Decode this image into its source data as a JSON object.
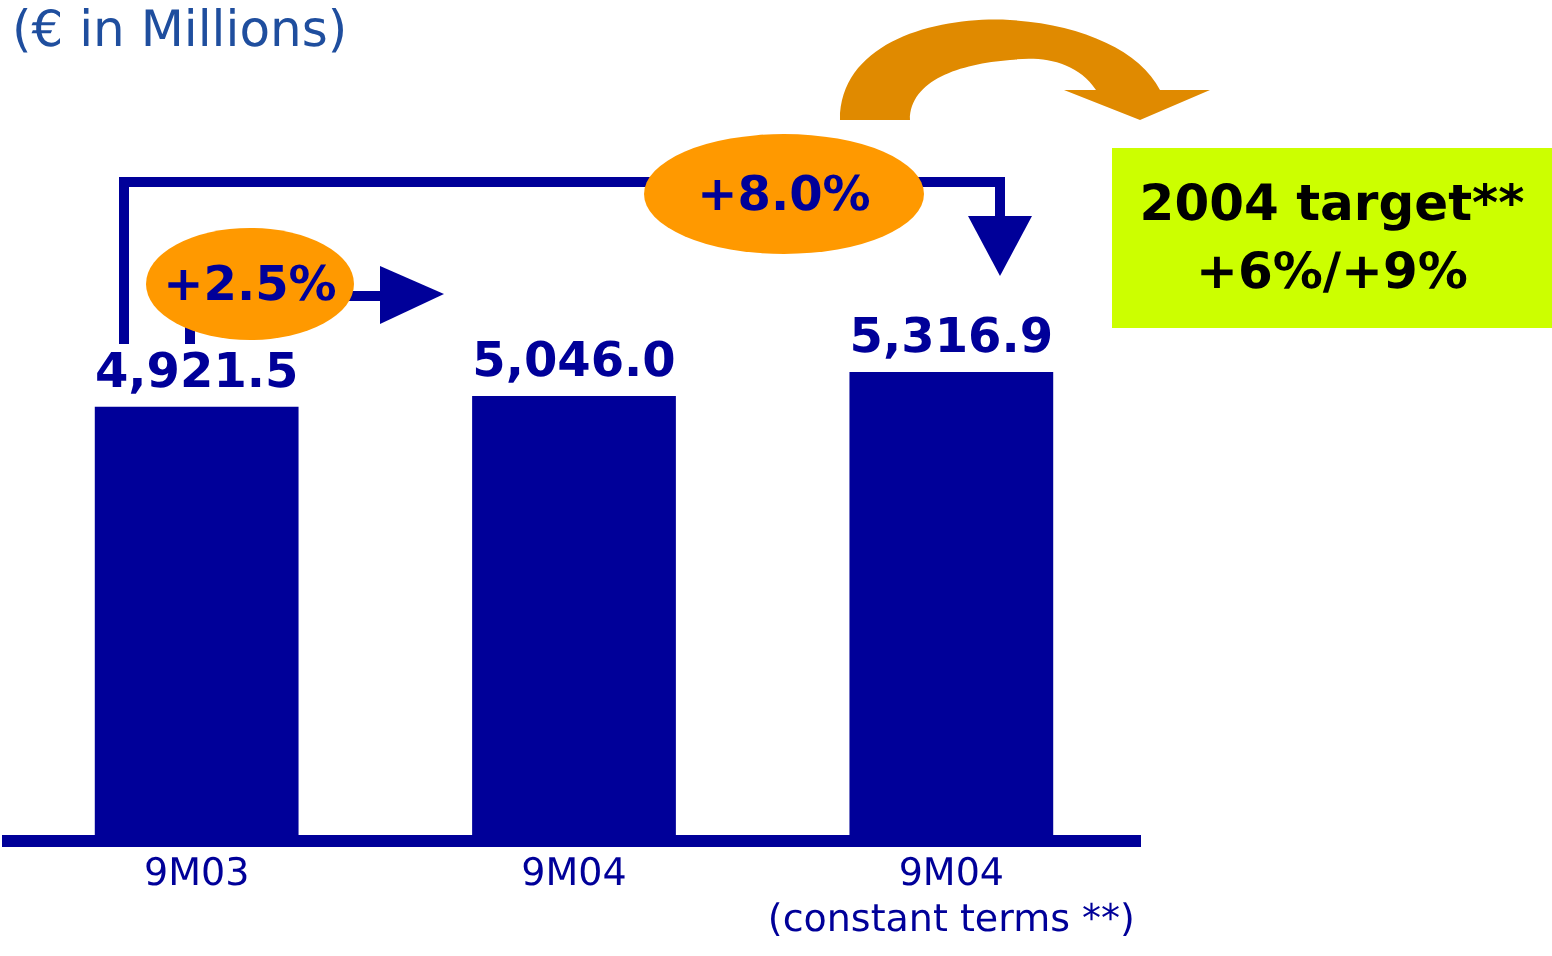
{
  "chart_data": {
    "type": "bar",
    "title": "(€ in Millions)",
    "categories": [
      "9M03",
      "9M04",
      "9M04\n(constant terms **)"
    ],
    "values": [
      4921.5,
      5046.0,
      5316.9
    ],
    "value_labels": [
      "4,921.5",
      "5,046.0",
      "5,316.9"
    ],
    "color": "#000099",
    "tick_labels": "x",
    "grid": false,
    "legend": false,
    "annotations": [
      "+2.5%",
      "+8.0%",
      "2004 target**\n+6%/+9%"
    ]
  }
}
